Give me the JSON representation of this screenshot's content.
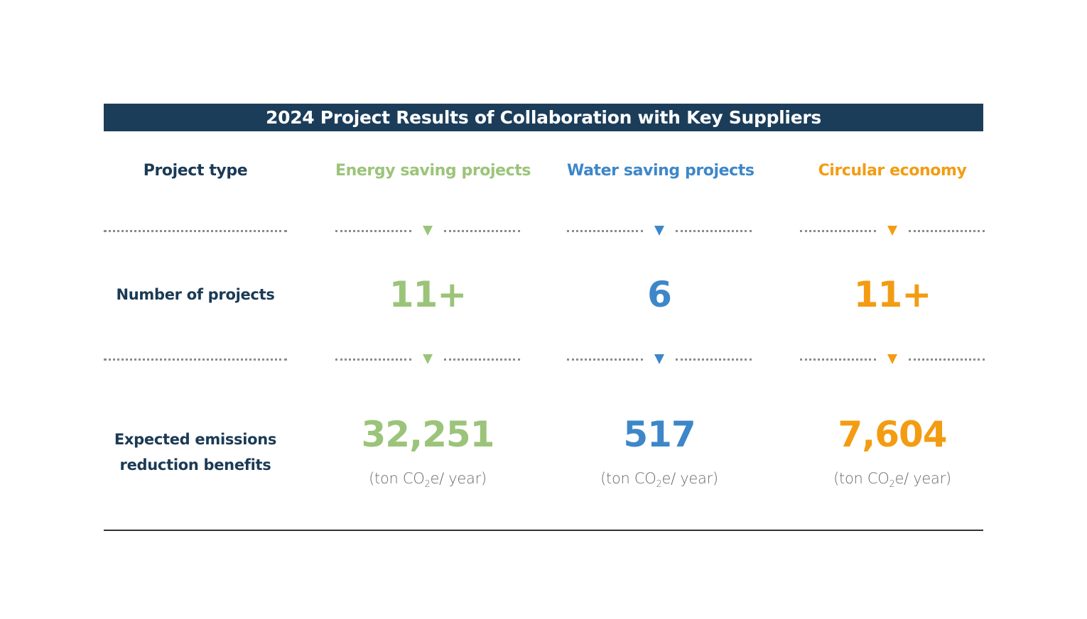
{
  "title": "2024 Project Results of Collaboration with Key Suppliers",
  "row_labels": {
    "project_type": "Project type",
    "number_of_projects": "Number of projects",
    "emissions_line1": "Expected emissions",
    "emissions_line2": "reduction benefits"
  },
  "columns": [
    {
      "name": "Energy saving projects",
      "count": "11+",
      "emissions": "32,251",
      "unit_pre": "(ton CO",
      "unit_sub": "2",
      "unit_post": "e/ year)",
      "color": "#9bc47a"
    },
    {
      "name": "Water saving projects",
      "count": "6",
      "emissions": "517",
      "unit_pre": "(ton CO",
      "unit_sub": "2",
      "unit_post": "e/ year)",
      "color": "#3d87c9"
    },
    {
      "name": "Circular economy",
      "count": "11+",
      "emissions": "7,604",
      "unit_pre": "(ton CO",
      "unit_sub": "2",
      "unit_post": "e/ year)",
      "color": "#f39c12"
    }
  ],
  "colors": {
    "banner": "#1b3d5a",
    "label": "#1b3a55",
    "dots": "#8c8c8c"
  }
}
